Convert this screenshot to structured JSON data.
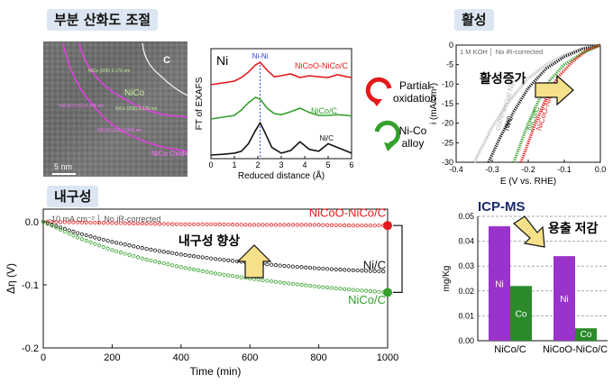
{
  "titles": {
    "tem": "부분 산화도 조절",
    "activity": "활성",
    "durability": "내구성"
  },
  "tem": {
    "labels": {
      "c": "C",
      "nico": "NiCo",
      "oxide": "NiCo Oxide",
      "scale": "5 nm",
      "p1": "NiCo (200) 0.176 nm",
      "p2": "NiCo (200) 0.176 nm",
      "p3": "NiCoO (111) 0.242 nm",
      "p4": "NiCoO (111) 0.242 nm"
    }
  },
  "exafs_arrows": {
    "partial": "Partial oxidation",
    "alloy": "Ni-Co alloy"
  },
  "activity_arrow_label": "활성증가",
  "durability_arrow_label": "내구성 향상",
  "icpms_arrow_label": "용출 저감",
  "icpms_title": "ICP-MS",
  "chart_data": [
    {
      "type": "line",
      "element_label": "Ni",
      "peak_label": "Ni-Ni",
      "xlabel": "Reduced distance (Å)",
      "ylabel": "FT of EXAFS",
      "xlim": [
        0,
        6
      ],
      "x_ticks": [
        0,
        1,
        2,
        3,
        4,
        5,
        6
      ],
      "peak_position": 2.1,
      "series": [
        {
          "name": "NiCoO-NiCo/C",
          "color": "#e31a1c",
          "x": [
            0,
            0.5,
            1,
            1.3,
            1.6,
            1.9,
            2.1,
            2.4,
            2.7,
            3,
            3.4,
            3.8,
            4.2,
            4.6,
            5,
            5.4,
            5.8,
            6
          ],
          "y": [
            0,
            0.05,
            0.1,
            0.2,
            0.35,
            0.55,
            0.62,
            0.4,
            0.22,
            0.25,
            0.3,
            0.2,
            0.25,
            0.22,
            0.2,
            0.28,
            0.22,
            0.2
          ]
        },
        {
          "name": "NiCo/C",
          "color": "#33a02c",
          "x": [
            0,
            0.5,
            1,
            1.3,
            1.6,
            1.9,
            2.1,
            2.4,
            2.7,
            3,
            3.4,
            3.8,
            4.2,
            4.6,
            5,
            5.4,
            5.8,
            6
          ],
          "y": [
            0,
            0.05,
            0.1,
            0.25,
            0.45,
            0.6,
            0.55,
            0.3,
            0.15,
            0.12,
            0.2,
            0.3,
            0.18,
            0.1,
            0.1,
            0.12,
            0.1,
            0.08
          ]
        },
        {
          "name": "Ni/C",
          "color": "#111111",
          "x": [
            0,
            0.5,
            1,
            1.3,
            1.6,
            1.9,
            2.1,
            2.3,
            2.6,
            3,
            3.4,
            3.8,
            4.2,
            4.6,
            5,
            5.4,
            5.8,
            6
          ],
          "y": [
            0,
            0.02,
            0.05,
            0.1,
            0.3,
            0.65,
            0.85,
            0.6,
            0.2,
            0.05,
            0.12,
            0.35,
            0.15,
            0.1,
            0.3,
            0.2,
            0.1,
            0.05
          ]
        }
      ]
    },
    {
      "type": "line",
      "annotation": "1 M KOH │ No iR-corrected",
      "xlabel": "E (V vs. RHE)",
      "ylabel": "i (mA/cm²)",
      "xlim": [
        -0.4,
        0.0
      ],
      "ylim": [
        -30,
        0
      ],
      "x_ticks": [
        -0.4,
        -0.3,
        -0.2,
        -0.1,
        0.0
      ],
      "y_ticks": [
        0,
        -5,
        -10,
        -15,
        -20,
        -25,
        -30
      ],
      "series": [
        {
          "name": "commercial Ni/C",
          "color": "#bbbbbb",
          "x": [
            -0.35,
            -0.3,
            -0.25,
            -0.2,
            -0.15,
            -0.1,
            -0.05,
            0
          ],
          "y": [
            -30,
            -21,
            -14,
            -8.5,
            -5,
            -2.5,
            -1,
            0
          ]
        },
        {
          "name": "Ni/C",
          "color": "#111111",
          "x": [
            -0.31,
            -0.28,
            -0.24,
            -0.2,
            -0.15,
            -0.1,
            -0.05,
            0
          ],
          "y": [
            -30,
            -24,
            -17,
            -11,
            -6,
            -3,
            -1,
            0
          ]
        },
        {
          "name": "NiCo/C",
          "color": "#33a02c",
          "x": [
            -0.24,
            -0.22,
            -0.2,
            -0.17,
            -0.14,
            -0.1,
            -0.05,
            0
          ],
          "y": [
            -30,
            -25,
            -20,
            -14,
            -9,
            -5,
            -2,
            0
          ]
        },
        {
          "name": "NiCoO-NiCo/C",
          "color": "#e31a1c",
          "x": [
            -0.22,
            -0.2,
            -0.18,
            -0.15,
            -0.12,
            -0.08,
            -0.04,
            0
          ],
          "y": [
            -30,
            -25,
            -20,
            -13.5,
            -8.5,
            -4.5,
            -1.5,
            0
          ]
        }
      ]
    },
    {
      "type": "scatter",
      "annotation": "-10 mA cm⁻² │ No iR-corrected",
      "xlabel": "Time (min)",
      "ylabel": "Δη (V)",
      "xlim": [
        0,
        1000
      ],
      "ylim": [
        -0.2,
        0.0
      ],
      "x_ticks": [
        0,
        200,
        400,
        600,
        800,
        1000
      ],
      "y_ticks": [
        0.0,
        -0.1,
        -0.2
      ],
      "series": [
        {
          "name": "NiCoO-NiCo/C",
          "color": "#e31a1c",
          "x": [
            0,
            100,
            200,
            300,
            400,
            500,
            600,
            700,
            800,
            900,
            1000
          ],
          "y": [
            0,
            -0.001,
            -0.002,
            -0.003,
            -0.004,
            -0.004,
            -0.005,
            -0.005,
            -0.005,
            -0.006,
            -0.006
          ]
        },
        {
          "name": "Ni/C",
          "color": "#111111",
          "x": [
            0,
            100,
            200,
            300,
            400,
            500,
            600,
            700,
            800,
            900,
            1000
          ],
          "y": [
            0,
            -0.018,
            -0.032,
            -0.043,
            -0.052,
            -0.059,
            -0.065,
            -0.07,
            -0.074,
            -0.077,
            -0.079
          ]
        },
        {
          "name": "NiCo/C",
          "color": "#33a02c",
          "x": [
            0,
            100,
            200,
            300,
            400,
            500,
            600,
            700,
            800,
            900,
            1000
          ],
          "y": [
            0,
            -0.025,
            -0.045,
            -0.06,
            -0.072,
            -0.082,
            -0.09,
            -0.097,
            -0.103,
            -0.108,
            -0.112
          ]
        }
      ]
    },
    {
      "type": "bar",
      "ylabel": "mg/Kg",
      "ylim": [
        0,
        0.05
      ],
      "y_ticks": [
        0.0,
        0.01,
        0.02,
        0.03,
        0.04,
        0.05
      ],
      "categories": [
        "NiCo/C",
        "NiCoO-NiCo/C"
      ],
      "series": [
        {
          "name": "Ni",
          "color": "#9933cc",
          "values": [
            0.046,
            0.034
          ]
        },
        {
          "name": "Co",
          "color": "#2a8a2a",
          "values": [
            0.022,
            0.005
          ]
        }
      ]
    }
  ]
}
